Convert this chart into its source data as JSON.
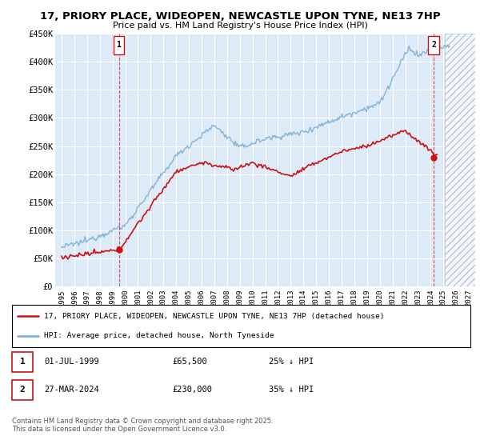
{
  "title": "17, PRIORY PLACE, WIDEOPEN, NEWCASTLE UPON TYNE, NE13 7HP",
  "subtitle": "Price paid vs. HM Land Registry's House Price Index (HPI)",
  "ylabel_ticks": [
    "£0",
    "£50K",
    "£100K",
    "£150K",
    "£200K",
    "£250K",
    "£300K",
    "£350K",
    "£400K",
    "£450K"
  ],
  "ylim": [
    0,
    450000
  ],
  "xlim_start": 1994.5,
  "xlim_end": 2027.5,
  "hpi_color": "#7aadd4",
  "price_color": "#cc1111",
  "marker1_date": 1999.5,
  "marker2_date": 2024.23,
  "marker1_price": 65500,
  "marker2_price": 230000,
  "vline1_x": 1999.5,
  "vline2_x": 2024.23,
  "future_start": 2025.1,
  "legend_line1": "17, PRIORY PLACE, WIDEOPEN, NEWCASTLE UPON TYNE, NE13 7HP (detached house)",
  "legend_line2": "HPI: Average price, detached house, North Tyneside",
  "annot1_label": "1",
  "annot1_date": "01-JUL-1999",
  "annot1_price": "£65,500",
  "annot1_hpi": "25% ↓ HPI",
  "annot2_label": "2",
  "annot2_date": "27-MAR-2024",
  "annot2_price": "£230,000",
  "annot2_hpi": "35% ↓ HPI",
  "footer": "Contains HM Land Registry data © Crown copyright and database right 2025.\nThis data is licensed under the Open Government Licence v3.0.",
  "bg_color": "#ddeaf7",
  "hatch_color": "#aabbcc",
  "grid_color": "#ffffff",
  "label_box_color": "#cc1111"
}
